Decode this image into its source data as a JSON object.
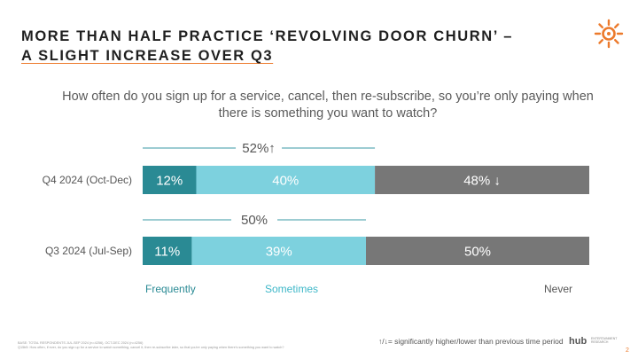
{
  "title": {
    "line1": "MORE THAN HALF PRACTICE ‘REVOLVING DOOR CHURN’ –",
    "line2": "A SLIGHT INCREASE OVER Q3"
  },
  "question": "How often do you sign up for a service, cancel, then re-subscribe, so you’re only paying when there is something you want to watch?",
  "colors": {
    "frequently": "#2a8a94",
    "sometimes": "#7dd1de",
    "never": "#777777",
    "accent": "#ec7a2c",
    "bracket": "#3a9aa6"
  },
  "chart_data": {
    "type": "bar",
    "orientation": "horizontal-stacked-100",
    "categories": [
      "Q4 2024 (Oct-Dec)",
      "Q3 2024 (Jul-Sep)"
    ],
    "series": [
      {
        "name": "Frequently",
        "values": [
          12,
          11
        ],
        "labels": [
          "12%",
          "11%"
        ]
      },
      {
        "name": "Sometimes",
        "values": [
          40,
          39
        ],
        "labels": [
          "40%",
          "39%"
        ]
      },
      {
        "name": "Never",
        "values": [
          48,
          50
        ],
        "labels": [
          "48% ↓",
          "50%"
        ]
      }
    ],
    "nets": [
      {
        "category": "Q4 2024 (Oct-Dec)",
        "value": 52,
        "label": "52%↑"
      },
      {
        "category": "Q3 2024 (Jul-Sep)",
        "value": 50,
        "label": "50%"
      }
    ],
    "xlim": [
      0,
      100
    ]
  },
  "legend": {
    "frequently": "Frequently",
    "sometimes": "Sometimes",
    "never": "Never"
  },
  "footnote": {
    "line1": "BASE: TOTAL RESPONDENTS JUL-SEP 2024 (n=4256), OCT-DEC 2024 (n=4256)",
    "line2": "Q15b5: How often, if ever, do you sign up for a service to watch something, cancel it, then re-subscribe later, so that you're only paying when there's something you want to watch?"
  },
  "significance_note": "↑/↓= significantly higher/lower than previous time period",
  "brand": {
    "name": "hub",
    "sub": "ENTERTAINMENT RESEARCH"
  },
  "page_number": "2"
}
